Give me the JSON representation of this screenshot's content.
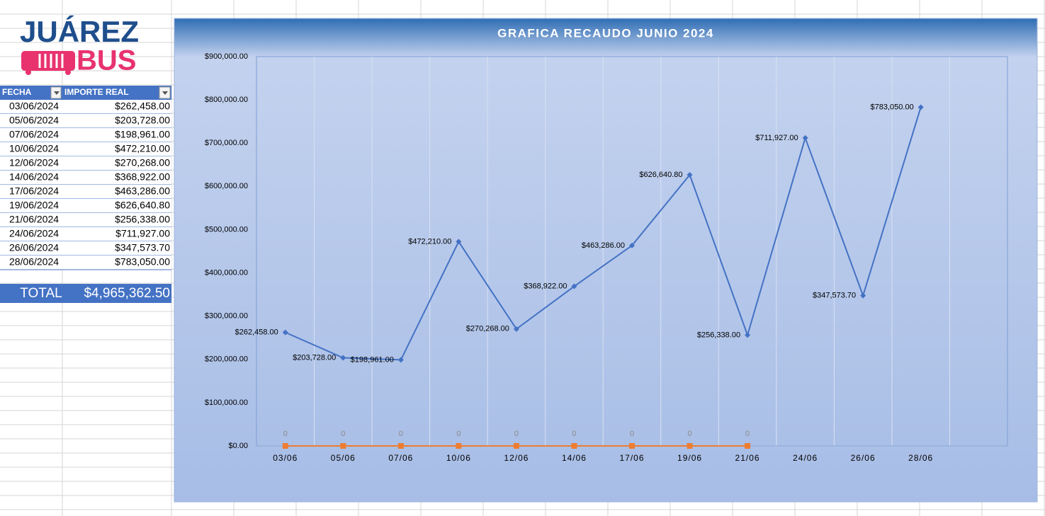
{
  "logo": {
    "line1": "JUÁREZ",
    "line2": "BUS"
  },
  "table": {
    "headers": [
      "FECHA",
      "IMPORTE REAL"
    ],
    "rows": [
      [
        "03/06/2024",
        "$262,458.00"
      ],
      [
        "05/06/2024",
        "$203,728.00"
      ],
      [
        "07/06/2024",
        "$198,961.00"
      ],
      [
        "10/06/2024",
        "$472,210.00"
      ],
      [
        "12/06/2024",
        "$270,268.00"
      ],
      [
        "14/06/2024",
        "$368,922.00"
      ],
      [
        "17/06/2024",
        "$463,286.00"
      ],
      [
        "19/06/2024",
        "$626,640.80"
      ],
      [
        "21/06/2024",
        "$256,338.00"
      ],
      [
        "24/06/2024",
        "$711,927.00"
      ],
      [
        "26/06/2024",
        "$347,573.70"
      ],
      [
        "28/06/2024",
        "$783,050.00"
      ]
    ],
    "total": [
      "TOTAL",
      "$4,965,362.50"
    ]
  },
  "chart_data": {
    "type": "line",
    "title": "GRAFICA RECAUDO JUNIO 2024",
    "categories": [
      "03/06",
      "05/06",
      "07/06",
      "10/06",
      "12/06",
      "14/06",
      "17/06",
      "19/06",
      "21/06",
      "24/06",
      "26/06",
      "28/06",
      null
    ],
    "series": [
      {
        "color": "#4472c4",
        "values": [
          262458,
          203728,
          198961,
          472210,
          270268,
          368922,
          463286,
          626640.8,
          256338,
          711927,
          347573.7,
          783050,
          null
        ],
        "value_labels": [
          "$262,458.00",
          "$203,728.00",
          "$198,961.00",
          "$472,210.00",
          "$270,268.00",
          "$368,922.00",
          "$463,286.00",
          "$626,640.80",
          "$256,338.00",
          "$711,927.00",
          "$347,573.70",
          "$783,050.00",
          null
        ]
      },
      {
        "color": "#ed7d31",
        "values": [
          0,
          0,
          0,
          0,
          0,
          0,
          0,
          0,
          0,
          null,
          null,
          null,
          null
        ]
      }
    ],
    "ylim": [
      0,
      900000
    ],
    "yticks": [
      {
        "value": 0,
        "label": "$0.00"
      },
      {
        "value": 100000,
        "label": "$100,000.00"
      },
      {
        "value": 200000,
        "label": "$200,000.00"
      },
      {
        "value": 300000,
        "label": "$300,000.00"
      },
      {
        "value": 400000,
        "label": "$400,000.00"
      },
      {
        "value": 500000,
        "label": "$500,000.00"
      },
      {
        "value": 600000,
        "label": "$600,000.00"
      },
      {
        "value": 700000,
        "label": "$700,000.00"
      },
      {
        "value": 800000,
        "label": "$800,000.00"
      },
      {
        "value": 900000,
        "label": "$900,000.00"
      }
    ],
    "grid": "x"
  }
}
